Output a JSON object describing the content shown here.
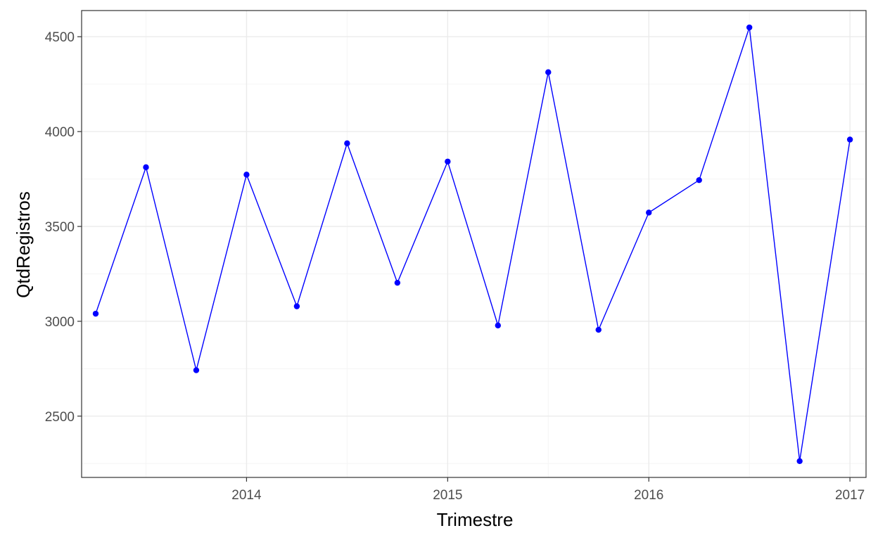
{
  "chart_data": {
    "type": "line",
    "title": "",
    "xlabel": "Trimestre",
    "ylabel": "QtdRegistros",
    "x_ticks": [
      2014,
      2015,
      2016,
      2017
    ],
    "y_ticks": [
      2500,
      3000,
      3500,
      4000,
      4500
    ],
    "x_minor_ticks": [
      2013.5,
      2014.5,
      2015.5,
      2016.5
    ],
    "y_minor_ticks": [
      2250,
      2750,
      3250,
      3750,
      4250
    ],
    "xlim": [
      2013.18,
      2017.08
    ],
    "ylim": [
      2177,
      4638
    ],
    "grid": true,
    "legend": "none",
    "colors": {
      "line": "#0000ff",
      "point": "#0000ff",
      "grid_major": "#ebebeb",
      "grid_minor": "#f5f5f5",
      "panel_border": "#333333"
    },
    "series": [
      {
        "x": [
          2013.25,
          2013.5,
          2013.75,
          2014.0,
          2014.25,
          2014.5,
          2014.75,
          2015.0,
          2015.25,
          2015.5,
          2015.75,
          2016.0,
          2016.25,
          2016.5,
          2016.75,
          2017.0
        ],
        "values": [
          3040,
          3812,
          2742,
          3773,
          3079,
          3938,
          3203,
          3842,
          2978,
          4313,
          2955,
          3573,
          3744,
          4549,
          2263,
          3958
        ]
      }
    ]
  }
}
